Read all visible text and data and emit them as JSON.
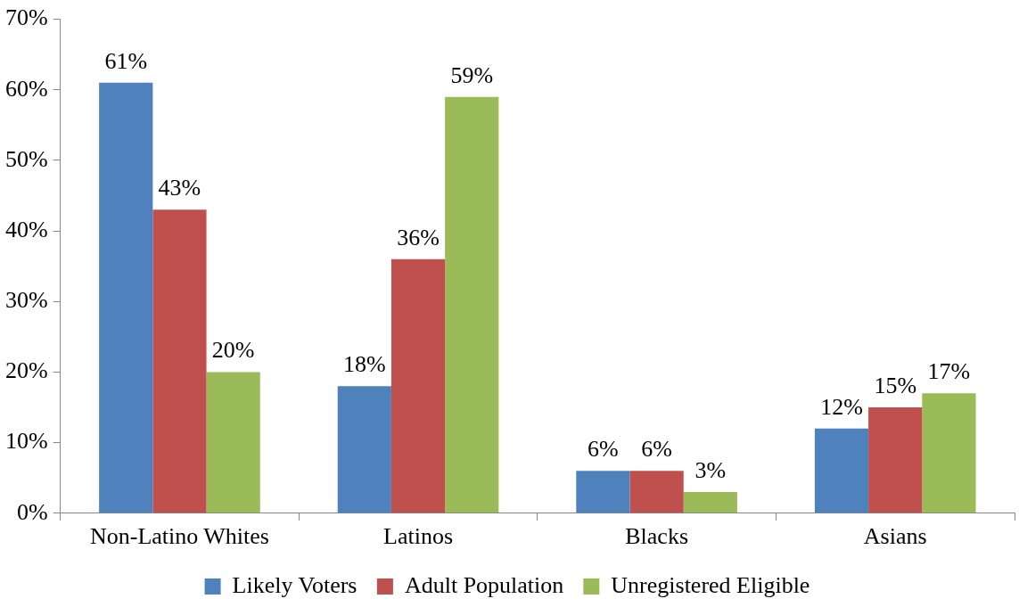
{
  "chart_data": {
    "type": "bar",
    "categories": [
      "Non-Latino Whites",
      "Latinos",
      "Blacks",
      "Asians"
    ],
    "series": [
      {
        "name": "Likely Voters",
        "color": "#4f81bd",
        "values": [
          61,
          18,
          6,
          12
        ],
        "value_labels": [
          "61%",
          "18%",
          "6%",
          "12%"
        ]
      },
      {
        "name": "Adult Population",
        "color": "#c0504d",
        "values": [
          43,
          36,
          6,
          15
        ],
        "value_labels": [
          "43%",
          "36%",
          "6%",
          "15%"
        ]
      },
      {
        "name": "Unregistered Eligible",
        "color": "#9bbb59",
        "values": [
          20,
          59,
          3,
          17
        ],
        "value_labels": [
          "20%",
          "59%",
          "3%",
          "17%"
        ]
      }
    ],
    "ylim": [
      0,
      70
    ],
    "yticks": [
      {
        "value": 0,
        "label": "0%"
      },
      {
        "value": 10,
        "label": "10%"
      },
      {
        "value": 20,
        "label": "20%"
      },
      {
        "value": 30,
        "label": "30%"
      },
      {
        "value": 40,
        "label": "40%"
      },
      {
        "value": 50,
        "label": "50%"
      },
      {
        "value": 60,
        "label": "60%"
      },
      {
        "value": 70,
        "label": "70%"
      }
    ],
    "grid": false,
    "legend": "bottom"
  }
}
